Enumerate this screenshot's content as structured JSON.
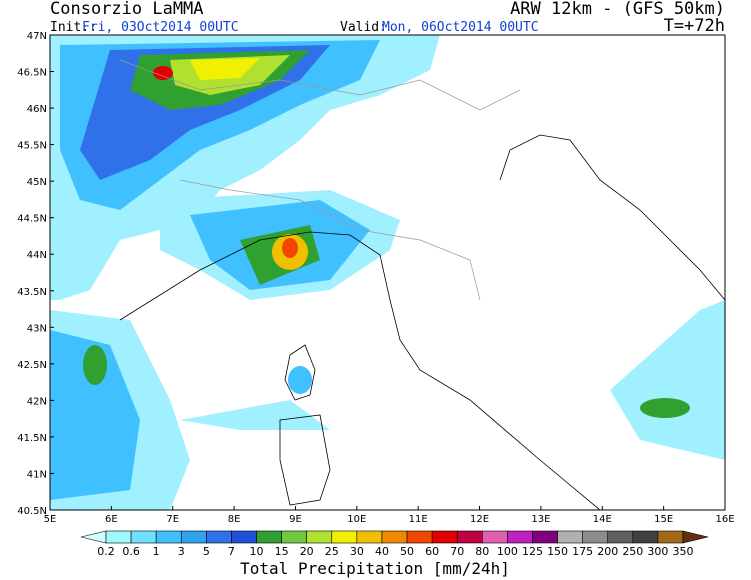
{
  "header": {
    "title": "Consorzio LaMMA",
    "model": "ARW 12km - (GFS 50km)",
    "init_label": "Init.:",
    "init_value": "Fri, 03Oct2014 00UTC",
    "valid_label": "Valid:",
    "valid_value": "Mon, 06Oct2014 00UTC",
    "lead": "T=+72h"
  },
  "map": {
    "lat_labels": [
      "47N",
      "46.5N",
      "46N",
      "45.5N",
      "45N",
      "44.5N",
      "44N",
      "43.5N",
      "43N",
      "42.5N",
      "42N",
      "41.5N",
      "41N",
      "40.5N"
    ],
    "lon_labels": [
      "5E",
      "6E",
      "7E",
      "8E",
      "9E",
      "10E",
      "11E",
      "12E",
      "13E",
      "14E",
      "15E",
      "16E"
    ]
  },
  "legend": {
    "title": "Total Precipitation [mm/24h]",
    "labels": [
      "0.2",
      "0.6",
      "1",
      "3",
      "5",
      "7",
      "10",
      "15",
      "20",
      "25",
      "30",
      "40",
      "50",
      "60",
      "70",
      "80",
      "100",
      "125",
      "150",
      "175",
      "200",
      "250",
      "300",
      "350"
    ],
    "colors": [
      "#d0ffff",
      "#a0f8ff",
      "#70e0ff",
      "#40c0ff",
      "#30a0f0",
      "#3070e8",
      "#2050d8",
      "#30a030",
      "#70c840",
      "#b0e030",
      "#f0f000",
      "#f0c000",
      "#f08800",
      "#f04800",
      "#e00000",
      "#c00040",
      "#e060b0",
      "#c020c0",
      "#800080",
      "#b0b0b0",
      "#8c8c8c",
      "#606060",
      "#404040",
      "#a06818",
      "#603010"
    ]
  }
}
